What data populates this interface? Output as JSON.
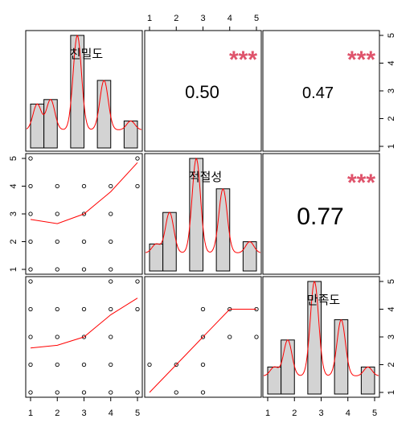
{
  "chart_data": {
    "type": "scatter-matrix",
    "variables": [
      "친밀도",
      "적절성",
      "만족도"
    ],
    "axis_ticks": [
      1,
      2,
      3,
      4,
      5
    ],
    "axis_range": [
      1,
      5
    ],
    "colors": {
      "hist_fill": "#d3d3d3",
      "density_line": "#ff0000",
      "smooth_line": "#ff0000",
      "stars": "#df536b",
      "frame": "#000000"
    },
    "histograms": [
      {
        "variable": "친밀도",
        "bins": [
          [
            1,
            1.5
          ],
          [
            1.5,
            2
          ],
          [
            2.5,
            3
          ],
          [
            3.5,
            4
          ],
          [
            4.5,
            5
          ]
        ],
        "counts": [
          1.95,
          2.15,
          5.0,
          3.0,
          1.2
        ]
      },
      {
        "variable": "적절성",
        "bins": [
          [
            1,
            1.5
          ],
          [
            1.5,
            2
          ],
          [
            2.5,
            3
          ],
          [
            3.5,
            4
          ],
          [
            4.5,
            5
          ]
        ],
        "counts": [
          1.2,
          2.6,
          5.0,
          3.65,
          1.3
        ]
      },
      {
        "variable": "만족도",
        "bins": [
          [
            1,
            1.5
          ],
          [
            1.5,
            2
          ],
          [
            2.5,
            3
          ],
          [
            3.5,
            4
          ],
          [
            4.5,
            5
          ]
        ],
        "counts": [
          1.2,
          2.4,
          5.0,
          3.3,
          1.2
        ]
      }
    ],
    "correlations": [
      {
        "pair": [
          "친밀도",
          "적절성"
        ],
        "r": "0.50",
        "stars": "***"
      },
      {
        "pair": [
          "친밀도",
          "만족도"
        ],
        "r": "0.47",
        "stars": "***"
      },
      {
        "pair": [
          "적절성",
          "만족도"
        ],
        "r": "0.77",
        "stars": "***"
      }
    ],
    "scatter_points": {
      "적절성_vs_친밀도": [
        [
          1,
          1
        ],
        [
          2,
          1
        ],
        [
          3,
          1
        ],
        [
          4,
          1
        ],
        [
          1,
          2
        ],
        [
          2,
          2
        ],
        [
          3,
          2
        ],
        [
          4,
          2
        ],
        [
          1,
          3
        ],
        [
          2,
          3
        ],
        [
          3,
          3
        ],
        [
          4,
          3
        ],
        [
          1,
          4
        ],
        [
          2,
          4
        ],
        [
          3,
          4
        ],
        [
          4,
          4
        ],
        [
          5,
          4
        ],
        [
          1,
          5
        ],
        [
          5,
          5
        ]
      ],
      "만족도_vs_친밀도": [
        [
          1,
          1
        ],
        [
          2,
          1
        ],
        [
          3,
          1
        ],
        [
          4,
          1
        ],
        [
          5,
          1
        ],
        [
          1,
          2
        ],
        [
          2,
          2
        ],
        [
          3,
          2
        ],
        [
          4,
          2
        ],
        [
          1,
          3
        ],
        [
          2,
          3
        ],
        [
          3,
          3
        ],
        [
          4,
          3
        ],
        [
          1,
          4
        ],
        [
          2,
          4
        ],
        [
          3,
          4
        ],
        [
          4,
          4
        ],
        [
          5,
          4
        ],
        [
          1,
          5
        ],
        [
          4,
          5
        ],
        [
          5,
          5
        ]
      ],
      "만족도_vs_적절성": [
        [
          2,
          1
        ],
        [
          3,
          1
        ],
        [
          1,
          2
        ],
        [
          2,
          2
        ],
        [
          3,
          2
        ],
        [
          3,
          3
        ],
        [
          4,
          3
        ],
        [
          5,
          3
        ],
        [
          3,
          4
        ],
        [
          4,
          4
        ],
        [
          5,
          4
        ]
      ]
    },
    "smooth_lines": {
      "적절성_vs_친밀도": [
        [
          1,
          2.8
        ],
        [
          2,
          2.65
        ],
        [
          3,
          3.0
        ],
        [
          4,
          3.8
        ],
        [
          5,
          4.85
        ]
      ],
      "만족도_vs_친밀도": [
        [
          1,
          2.6
        ],
        [
          2,
          2.7
        ],
        [
          3,
          3.0
        ],
        [
          4,
          3.8
        ],
        [
          5,
          4.4
        ]
      ],
      "만족도_vs_적절성": [
        [
          1,
          1.0
        ],
        [
          2,
          2.0
        ],
        [
          3,
          3.0
        ],
        [
          4,
          4.0
        ],
        [
          5,
          4.0
        ]
      ]
    }
  }
}
